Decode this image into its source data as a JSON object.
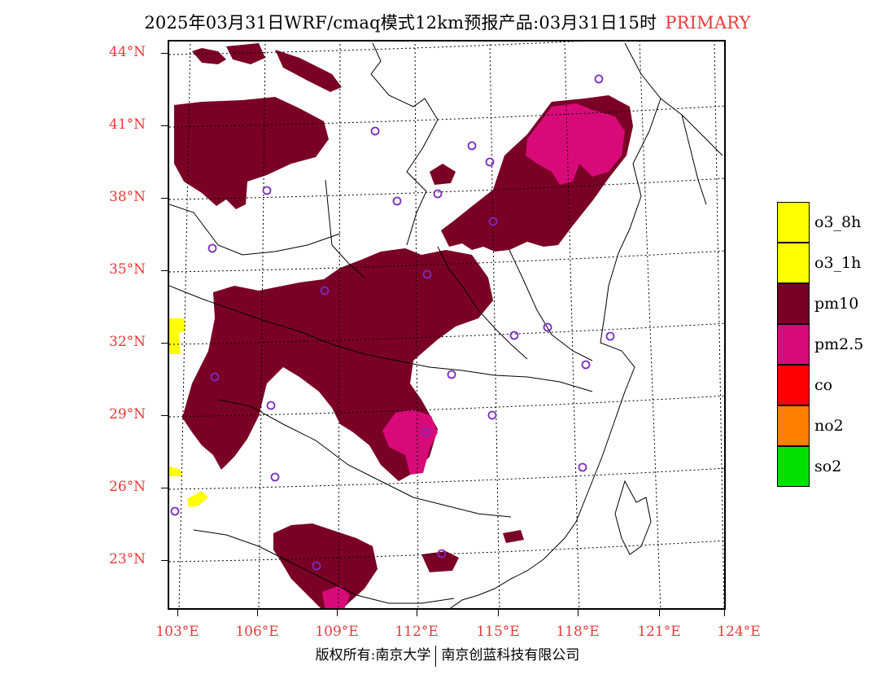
{
  "header": {
    "title": "2025年03月31日WRF/cmaq模式12km预报产品:03月31日15时",
    "tag": "PRIMARY",
    "tag_color": "#e83a3a"
  },
  "axes": {
    "lat_labels": [
      "44°N",
      "41°N",
      "38°N",
      "35°N",
      "32°N",
      "29°N",
      "26°N",
      "23°N"
    ],
    "lon_labels": [
      "103°E",
      "106°E",
      "109°E",
      "112°E",
      "115°E",
      "118°E",
      "121°E",
      "124°E"
    ],
    "label_color": "#e83a3a"
  },
  "legend": {
    "items": [
      {
        "label": "o3_8h",
        "color": "#ffff00"
      },
      {
        "label": "o3_1h",
        "color": "#ffff00"
      },
      {
        "label": "pm10",
        "color": "#7a0026"
      },
      {
        "label": "pm2.5",
        "color": "#d80a7a"
      },
      {
        "label": "co",
        "color": "#ff0000"
      },
      {
        "label": "no2",
        "color": "#ff8000"
      },
      {
        "label": "so2",
        "color": "#00e000"
      }
    ]
  },
  "map": {
    "pollutant_colors": {
      "pm10": "#7a0026",
      "pm2.5": "#d80a7a",
      "o3": "#ffff00"
    },
    "station_marker": "purple-circle",
    "station_color": "#7b2cbf"
  },
  "footer": {
    "left": "版权所有:南京大学",
    "right": "南京创蓝科技有限公司"
  }
}
